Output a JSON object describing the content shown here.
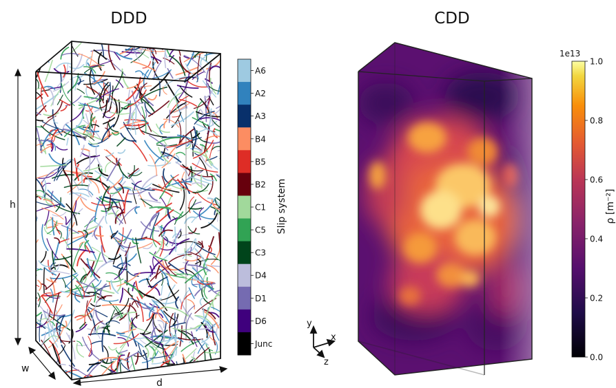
{
  "ddd": {
    "title": "DDD",
    "dim_h": "h",
    "dim_w": "w",
    "dim_d": "d",
    "legend_title": "Slip system",
    "slip_systems": [
      {
        "label": "A6",
        "color": "#9ecae1"
      },
      {
        "label": "A2",
        "color": "#3182bd"
      },
      {
        "label": "A3",
        "color": "#08306b"
      },
      {
        "label": "B4",
        "color": "#fc8d62"
      },
      {
        "label": "B5",
        "color": "#de2d26"
      },
      {
        "label": "B2",
        "color": "#67000d"
      },
      {
        "label": "C1",
        "color": "#a1d99b"
      },
      {
        "label": "C5",
        "color": "#31a354"
      },
      {
        "label": "C3",
        "color": "#00441b"
      },
      {
        "label": "D4",
        "color": "#bcbddc"
      },
      {
        "label": "D1",
        "color": "#756bb1"
      },
      {
        "label": "D6",
        "color": "#3f007d"
      },
      {
        "label": "Junc",
        "color": "#000000"
      }
    ]
  },
  "axes_triad": {
    "x": "x",
    "y": "y",
    "z": "z"
  },
  "cdd": {
    "title": "CDD",
    "colorbar": {
      "multiplier": "1e13",
      "ticks": [
        "0.0",
        "0.2",
        "0.4",
        "0.6",
        "0.8",
        "1.0"
      ],
      "label": "ρ [m⁻²]",
      "colormap": "inferno"
    }
  }
}
